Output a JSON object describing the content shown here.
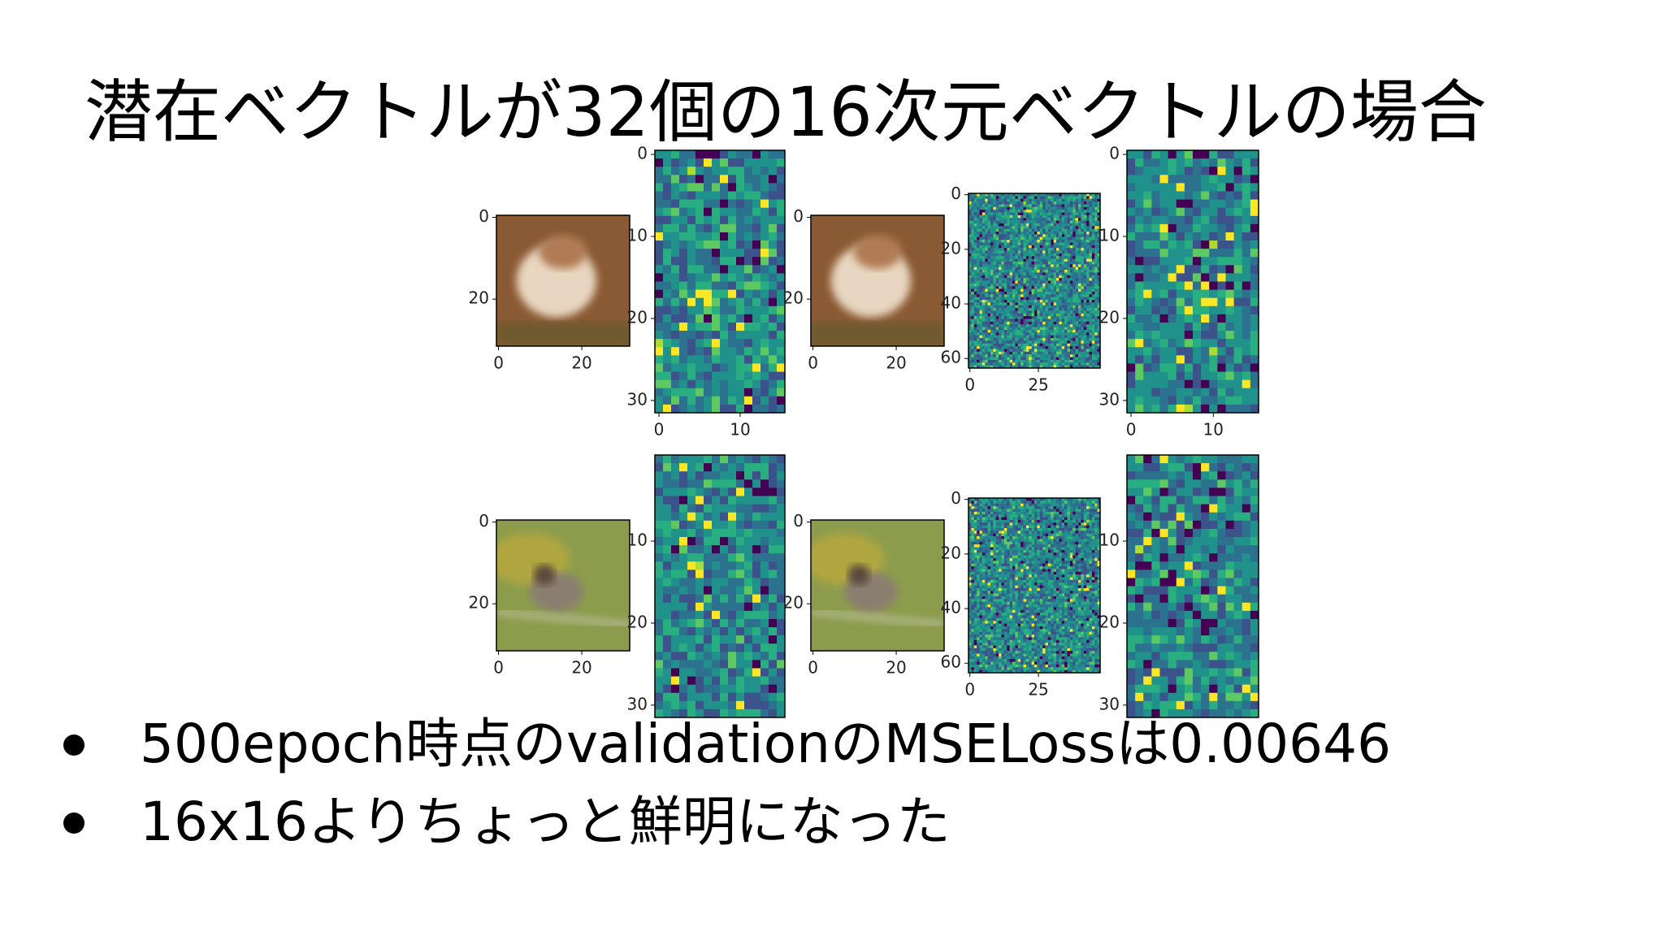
{
  "title": "潜在ベクトルが32個の16次元ベクトルの場合",
  "figure": {
    "rows": [
      {
        "panels": [
          {
            "yticks": [
              "0",
              "20"
            ],
            "xticks": [
              "0",
              "20"
            ]
          },
          {
            "yticks": [
              "0",
              "10",
              "20",
              "30"
            ],
            "xticks": [
              "0",
              "10"
            ]
          },
          {
            "yticks": [
              "0",
              "20"
            ],
            "xticks": [
              "0",
              "20"
            ]
          },
          {
            "yticks": [
              "0",
              "20",
              "40",
              "60"
            ],
            "xticks": [
              "0",
              "25"
            ]
          },
          {
            "yticks": [
              "0",
              "10",
              "20",
              "30"
            ],
            "xticks": [
              "0",
              "10"
            ]
          }
        ]
      },
      {
        "panels": [
          {
            "yticks": [
              "0",
              "20"
            ],
            "xticks": [
              "0",
              "20"
            ]
          },
          {
            "yticks": [
              "10",
              "20",
              "30"
            ]
          },
          {
            "yticks": [
              "0",
              "20"
            ],
            "xticks": [
              "0",
              "20"
            ]
          },
          {
            "yticks": [
              "0",
              "20",
              "40",
              "60"
            ],
            "xticks": [
              "0",
              "25"
            ]
          },
          {
            "yticks": [
              "10",
              "20",
              "30"
            ]
          }
        ]
      }
    ]
  },
  "bullets": [
    "500epoch時点のvalidationのMSELossは0.00646",
    "16x16よりちょっと鮮明になった"
  ]
}
